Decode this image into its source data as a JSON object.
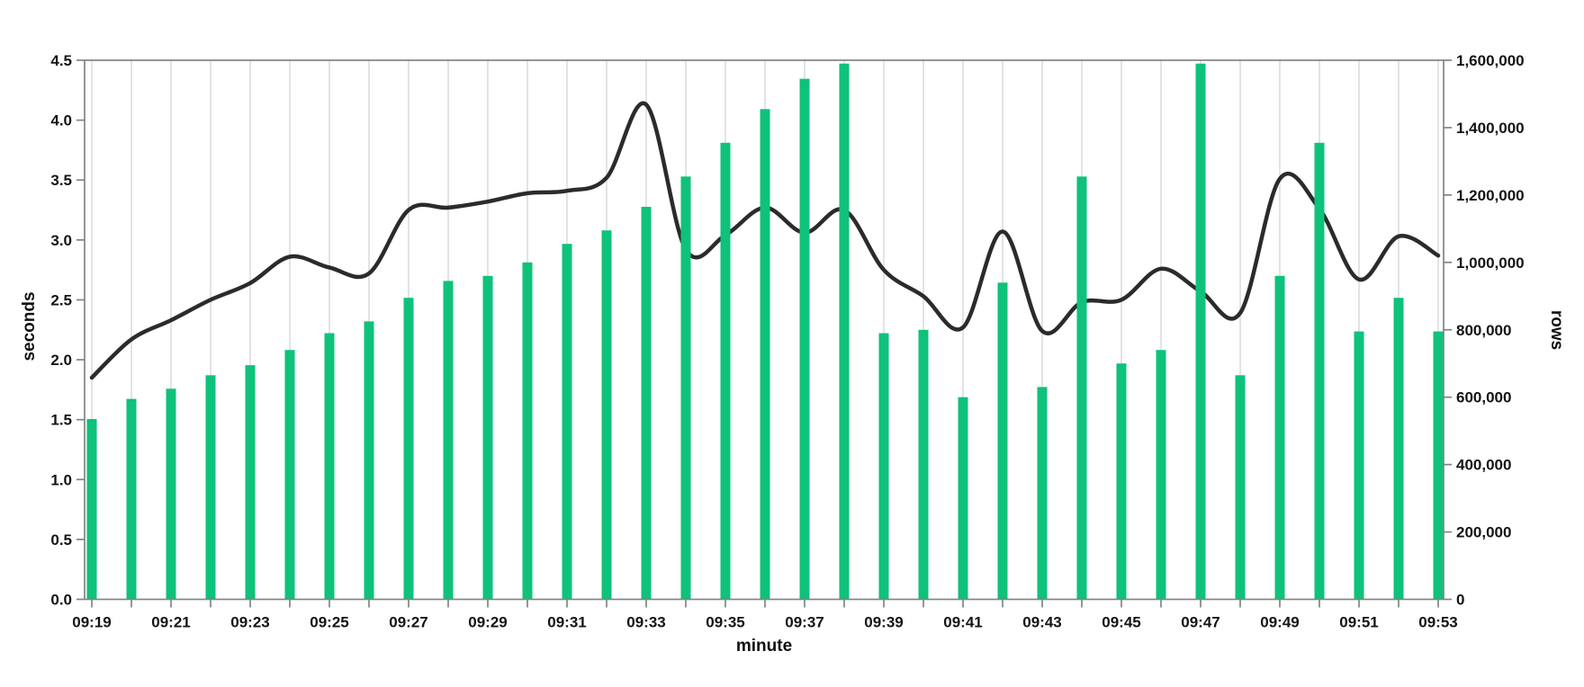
{
  "chart_data": {
    "type": "bar+line",
    "title": "",
    "categories": [
      "09:19",
      "09:20",
      "09:21",
      "09:22",
      "09:23",
      "09:24",
      "09:25",
      "09:26",
      "09:27",
      "09:28",
      "09:29",
      "09:30",
      "09:31",
      "09:32",
      "09:33",
      "09:34",
      "09:35",
      "09:36",
      "09:37",
      "09:38",
      "09:39",
      "09:40",
      "09:41",
      "09:42",
      "09:43",
      "09:44",
      "09:45",
      "09:46",
      "09:47",
      "09:48",
      "09:49",
      "09:50",
      "09:51",
      "09:52",
      "09:53"
    ],
    "series": [
      {
        "name": "rows",
        "type": "bar",
        "axis": "right",
        "color": "#0ec27b",
        "values": [
          535000,
          595000,
          625000,
          665000,
          695000,
          740000,
          790000,
          825000,
          895000,
          945000,
          960000,
          1000000,
          1055000,
          1095000,
          1165000,
          1255000,
          1355000,
          1455000,
          1545000,
          1590000,
          790000,
          800000,
          600000,
          940000,
          630000,
          1255000,
          700000,
          740000,
          1590000,
          665000,
          960000,
          1355000,
          795000,
          895000,
          795000
        ]
      },
      {
        "name": "seconds",
        "type": "line",
        "axis": "left",
        "color": "#2b2b2b",
        "values": [
          1.85,
          2.17,
          2.33,
          2.5,
          2.64,
          2.86,
          2.77,
          2.72,
          3.25,
          3.27,
          3.32,
          3.39,
          3.41,
          3.52,
          4.13,
          2.92,
          3.04,
          3.27,
          3.06,
          3.25,
          2.75,
          2.53,
          2.27,
          3.07,
          2.24,
          2.48,
          2.5,
          2.76,
          2.57,
          2.39,
          3.51,
          3.26,
          2.67,
          3.03,
          2.87
        ]
      }
    ],
    "left_axis": {
      "title": "seconds",
      "min": 0,
      "max": 4.5,
      "tick_step": 0.5,
      "tick_labels": [
        "0.0",
        "0.5",
        "1.0",
        "1.5",
        "2.0",
        "2.5",
        "3.0",
        "3.5",
        "4.0",
        "4.5"
      ]
    },
    "right_axis": {
      "title": "rows",
      "min": 0,
      "max": 1600000,
      "tick_step": 200000,
      "tick_labels": [
        "0",
        "200,000",
        "400,000",
        "600,000",
        "800,000",
        "1,000,000",
        "1,200,000",
        "1,400,000",
        "1,600,000"
      ]
    },
    "x_axis": {
      "title": "minute",
      "label_every": 2,
      "tick_labels": [
        "09:19",
        "09:21",
        "09:23",
        "09:25",
        "09:27",
        "09:29",
        "09:31",
        "09:33",
        "09:35",
        "09:37",
        "09:39",
        "09:41",
        "09:43",
        "09:45",
        "09:47",
        "09:49",
        "09:51",
        "09:53"
      ]
    },
    "grid": "vertical",
    "legend": "none",
    "colors": {
      "bar": "#0ec27b",
      "line": "#2b2b2b",
      "grid": "#dcdcdc",
      "frame": "#838383",
      "tick_text": "#141414",
      "background": "#ffffff"
    }
  }
}
